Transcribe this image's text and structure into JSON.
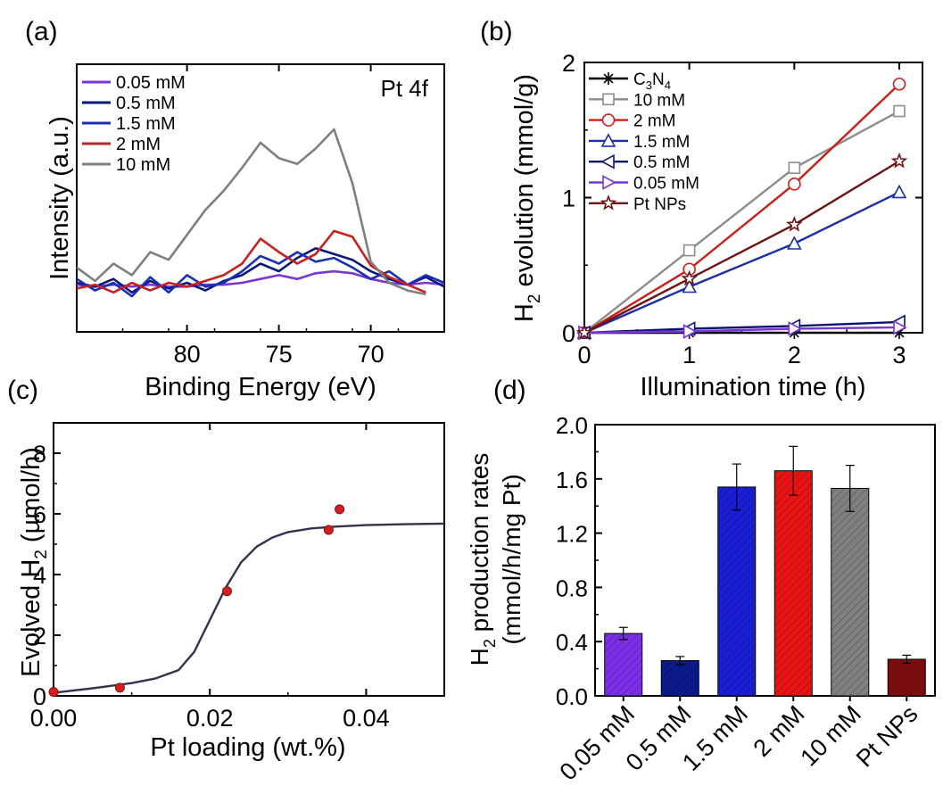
{
  "chart_data": [
    {
      "panel": "(a)",
      "type": "line",
      "xlabel": "Binding Energy (eV)",
      "ylabel": "Intensity (a.u.)",
      "xlim": [
        86,
        66
      ],
      "xticks": [
        80,
        75,
        70
      ],
      "annotation": "Pt 4f",
      "legend_position": "top-left",
      "series": [
        {
          "name": "0.05 mM",
          "color": "#7a35d6",
          "x": [
            86,
            85,
            84,
            83,
            82,
            81,
            80,
            79,
            78,
            77,
            76,
            75,
            74,
            73,
            72,
            71,
            70,
            69,
            68,
            67,
            66
          ],
          "y": [
            0.19,
            0.18,
            0.19,
            0.18,
            0.19,
            0.18,
            0.18,
            0.19,
            0.19,
            0.2,
            0.22,
            0.24,
            0.22,
            0.25,
            0.26,
            0.25,
            0.22,
            0.2,
            0.19,
            0.2,
            0.19
          ]
        },
        {
          "name": "0.5 mM",
          "color": "#0b1a78",
          "x": [
            86,
            85,
            84,
            83,
            82,
            81,
            80,
            79,
            78,
            77,
            76,
            75,
            74,
            73,
            72,
            71,
            70,
            69,
            68,
            67,
            66
          ],
          "y": [
            0.2,
            0.18,
            0.22,
            0.15,
            0.21,
            0.17,
            0.2,
            0.16,
            0.21,
            0.24,
            0.3,
            0.26,
            0.33,
            0.38,
            0.35,
            0.32,
            0.26,
            0.22,
            0.19,
            0.23,
            0.18
          ]
        },
        {
          "name": "1.5 mM",
          "color": "#1a2fb8",
          "x": [
            86,
            85,
            84,
            83,
            82,
            81,
            80,
            79,
            78,
            77,
            76,
            75,
            74,
            73,
            72,
            71,
            70,
            69,
            68,
            67,
            66
          ],
          "y": [
            0.22,
            0.16,
            0.2,
            0.13,
            0.23,
            0.15,
            0.24,
            0.18,
            0.2,
            0.26,
            0.34,
            0.3,
            0.36,
            0.31,
            0.33,
            0.28,
            0.22,
            0.26,
            0.19,
            0.24,
            0.2
          ]
        },
        {
          "name": "2 mM",
          "color": "#c8201e",
          "x": [
            86,
            85,
            84,
            83,
            82,
            81,
            80,
            79,
            78,
            77,
            76,
            75,
            74,
            73,
            72,
            71,
            70,
            69,
            68,
            67,
            66
          ],
          "y": [
            0.17,
            0.19,
            0.15,
            0.2,
            0.16,
            0.2,
            0.18,
            0.21,
            0.24,
            0.3,
            0.43,
            0.36,
            0.3,
            0.35,
            0.47,
            0.44,
            0.29,
            0.23,
            0.19,
            0.15,
            null
          ]
        },
        {
          "name": "10 mM",
          "color": "#7f7f7f",
          "x": [
            86,
            85,
            84,
            83,
            82,
            81,
            80,
            79,
            78,
            77,
            76,
            75,
            74,
            73,
            72,
            71,
            70,
            69,
            68,
            67,
            66
          ],
          "y": [
            0.28,
            0.21,
            0.3,
            0.24,
            0.36,
            0.32,
            0.45,
            0.58,
            0.68,
            0.8,
            0.93,
            0.85,
            0.82,
            0.9,
            1.0,
            0.72,
            0.31,
            0.2,
            0.16,
            0.14,
            null
          ]
        }
      ]
    },
    {
      "panel": "(b)",
      "type": "line",
      "xlabel": "Illumination time (h)",
      "ylabel": "H2 evolution (mmol/g)",
      "ylabel_parts": [
        "H",
        "2",
        " evolution (mmol/g)"
      ],
      "xlim": [
        0,
        3.2
      ],
      "ylim": [
        0,
        2
      ],
      "xticks": [
        0,
        1,
        2,
        3
      ],
      "yticks": [
        0,
        1,
        2
      ],
      "legend_position": "top-left",
      "x": [
        0,
        1,
        2,
        3
      ],
      "series": [
        {
          "name": "C3N4",
          "name_parts": [
            "C",
            "3",
            "N",
            "4"
          ],
          "marker": "asterisk",
          "color": "#000000",
          "values": [
            0,
            0,
            0,
            0
          ]
        },
        {
          "name": "10 mM",
          "marker": "square",
          "color": "#8c8c8c",
          "values": [
            0,
            0.61,
            1.22,
            1.64
          ]
        },
        {
          "name": "2 mM",
          "marker": "circle",
          "color": "#cc1f1a",
          "values": [
            0,
            0.47,
            1.1,
            1.84
          ]
        },
        {
          "name": "1.5 mM",
          "marker": "triangle-up",
          "color": "#1c2ea8",
          "values": [
            0,
            0.34,
            0.66,
            1.04
          ]
        },
        {
          "name": "0.5 mM",
          "marker": "triangle-left",
          "color": "#0b1570",
          "values": [
            0,
            0.03,
            0.05,
            0.08
          ]
        },
        {
          "name": "0.05 mM",
          "marker": "triangle-right",
          "color": "#7a35d6",
          "values": [
            0,
            0.01,
            0.03,
            0.04
          ]
        },
        {
          "name": "Pt NPs",
          "marker": "star",
          "color": "#6e1414",
          "values": [
            0,
            0.4,
            0.8,
            1.27
          ]
        }
      ]
    },
    {
      "panel": "(c)",
      "type": "scatter",
      "xlabel": "Pt loading (wt.%)",
      "ylabel": "Evolved H2 (µmol/h)",
      "ylabel_parts": [
        "Evolved H",
        "2",
        " (µmol/h)"
      ],
      "xlim": [
        0,
        0.05
      ],
      "ylim": [
        0,
        9
      ],
      "xticks": [
        "0.00",
        "0.02",
        "0.04"
      ],
      "yticks": [
        "0",
        "2",
        "4",
        "6",
        "8"
      ],
      "points": [
        {
          "x": 0.0,
          "y": 0.13
        },
        {
          "x": 0.0085,
          "y": 0.27
        },
        {
          "x": 0.0222,
          "y": 3.45
        },
        {
          "x": 0.0352,
          "y": 5.47
        },
        {
          "x": 0.0366,
          "y": 6.15
        }
      ],
      "fit": {
        "color": "#33334d",
        "x": [
          0,
          0.005,
          0.01,
          0.013,
          0.016,
          0.018,
          0.02,
          0.022,
          0.024,
          0.026,
          0.028,
          0.03,
          0.033,
          0.036,
          0.04,
          0.045,
          0.05
        ],
        "y": [
          0.1,
          0.25,
          0.42,
          0.57,
          0.85,
          1.45,
          2.5,
          3.55,
          4.4,
          4.92,
          5.22,
          5.4,
          5.52,
          5.58,
          5.63,
          5.66,
          5.68
        ]
      }
    },
    {
      "panel": "(d)",
      "type": "bar",
      "ylabel": "H2 production rates (mmol/h/mg Pt)",
      "ylabel_line1_parts": [
        "H",
        "2",
        " production rates"
      ],
      "ylabel_line2": "(mmol/h/mg Pt)",
      "ylim": [
        0,
        2.0
      ],
      "yticks": [
        "0.0",
        "0.4",
        "0.8",
        "1.2",
        "1.6",
        "2.0"
      ],
      "categories": [
        "0.05 mM",
        "0.5 mM",
        "1.5 mM",
        "2 mM",
        "10 mM",
        "Pt NPs"
      ],
      "values": [
        0.46,
        0.26,
        1.54,
        1.66,
        1.53,
        0.27
      ],
      "errors": [
        0.045,
        0.03,
        0.17,
        0.18,
        0.17,
        0.03
      ],
      "colors": [
        "#7b2fe8",
        "#0c1a8c",
        "#1a1fd6",
        "#e81414",
        "#808080",
        "#7a0d0d"
      ],
      "hatched": [
        true,
        true,
        true,
        true,
        true,
        false
      ]
    }
  ],
  "panel_labels": [
    "(a)",
    "(b)",
    "(c)",
    "(d)"
  ]
}
